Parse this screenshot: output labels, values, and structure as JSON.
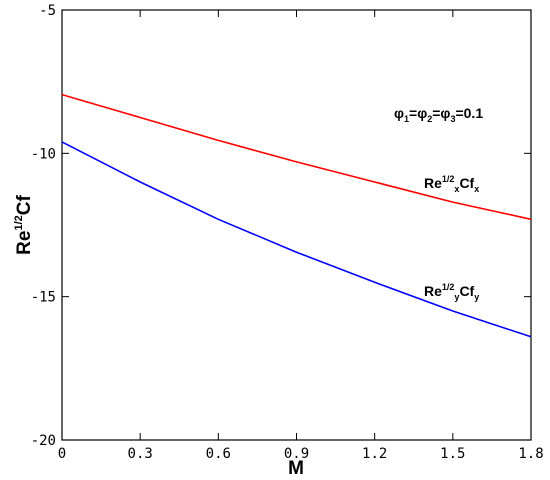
{
  "chart_data": {
    "type": "line",
    "xlabel": "M",
    "ylabel": {
      "base": "Re",
      "sup": "1/2",
      "tail": "Cf"
    },
    "xlim": [
      0,
      1.8
    ],
    "ylim": [
      -20,
      -5
    ],
    "xticks": [
      0,
      0.3,
      0.6,
      0.9,
      1.2,
      1.5,
      1.8
    ],
    "xtick_labels": [
      "0",
      "0.3",
      "0.6",
      "0.9",
      "1.2",
      "1.5",
      "1.8"
    ],
    "yticks": [
      -20,
      -15,
      -10,
      -5
    ],
    "ytick_labels": [
      "-20",
      "-15",
      "-10",
      "-5"
    ],
    "annotation": {
      "parts": [
        {
          "t": "φ",
          "s": "main"
        },
        {
          "t": "1",
          "s": "sub"
        },
        {
          "t": "=φ",
          "s": "main"
        },
        {
          "t": "2",
          "s": "sub"
        },
        {
          "t": "=φ",
          "s": "main"
        },
        {
          "t": "3",
          "s": "sub"
        },
        {
          "t": "=0.1",
          "s": "main"
        }
      ]
    },
    "series": [
      {
        "color": "#ff0000",
        "x": [
          0,
          0.3,
          0.6,
          0.9,
          1.2,
          1.5,
          1.8
        ],
        "y": [
          -7.95,
          -8.75,
          -9.55,
          -10.3,
          -11.0,
          -11.7,
          -12.3
        ],
        "label_parts": [
          {
            "t": "Re",
            "s": "main"
          },
          {
            "t": "1/2",
            "s": "sup"
          },
          {
            "t": "x",
            "s": "sub"
          },
          {
            "t": "Cf",
            "s": "main"
          },
          {
            "t": "x",
            "s": "sub"
          }
        ]
      },
      {
        "color": "#0000ff",
        "x": [
          0,
          0.3,
          0.6,
          0.9,
          1.2,
          1.5,
          1.8
        ],
        "y": [
          -9.6,
          -11.0,
          -12.3,
          -13.45,
          -14.5,
          -15.5,
          -16.4
        ],
        "label_parts": [
          {
            "t": "Re",
            "s": "main"
          },
          {
            "t": "1/2",
            "s": "sup"
          },
          {
            "t": "y",
            "s": "sub"
          },
          {
            "t": "Cf",
            "s": "main"
          },
          {
            "t": "y",
            "s": "sub"
          }
        ]
      }
    ],
    "grid": false,
    "legend": "none"
  }
}
